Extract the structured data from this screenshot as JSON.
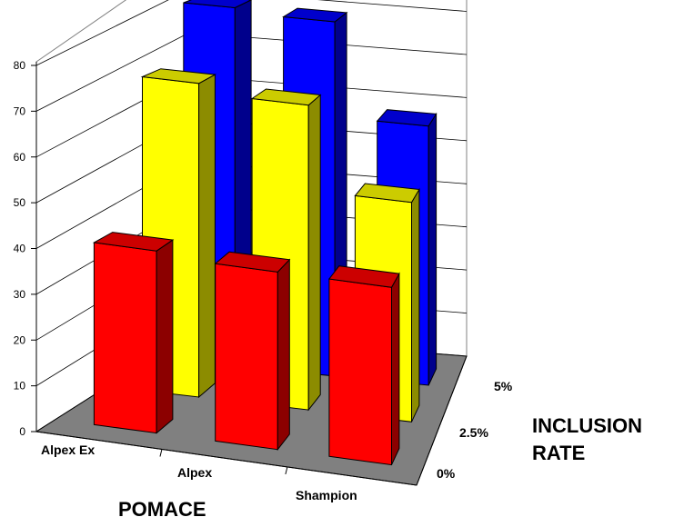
{
  "chart_data": {
    "type": "bar",
    "subtype": "3d-clustered-depth",
    "categories": [
      "Alpex Ex",
      "Alpex",
      "Shampion"
    ],
    "series": [
      {
        "name": "0%",
        "values": [
          39,
          38,
          38
        ]
      },
      {
        "name": "2.5%",
        "values": [
          70,
          68,
          49
        ]
      },
      {
        "name": "5%",
        "values": [
          83,
          82,
          60
        ]
      }
    ],
    "xlabel": "POMACE",
    "zlabel_line1": "INCLUSION",
    "zlabel_line2": "RATE",
    "ylim": [
      0,
      80
    ],
    "yticks": [
      "0",
      "10",
      "20",
      "30",
      "40",
      "50",
      "60",
      "70",
      "80"
    ],
    "grid": true,
    "colors": {
      "0%": "#ff0000",
      "2.5%": "#ffff00",
      "5%": "#0000ff",
      "floor": "#808080",
      "grid": "#000000"
    }
  }
}
